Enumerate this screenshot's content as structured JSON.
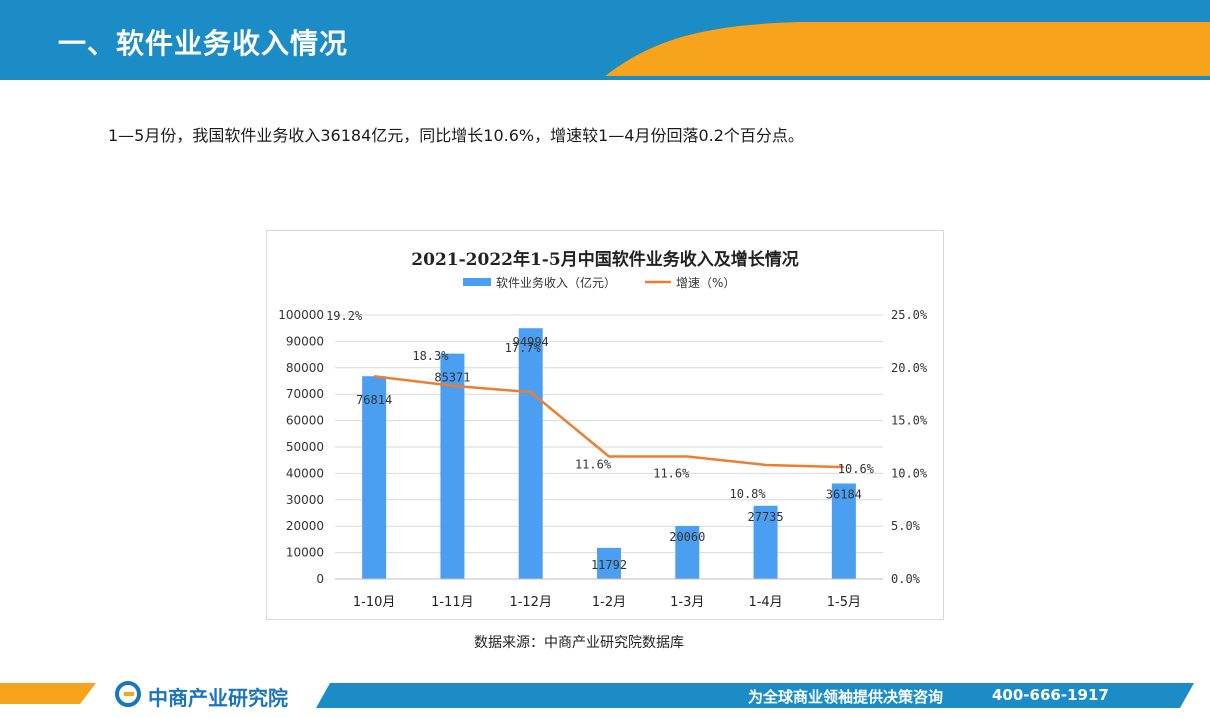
{
  "header": {
    "title": "一、软件业务收入情况"
  },
  "intro": {
    "text": "1—5月份，我国软件业务收入36184亿元，同比增长10.6%，增速较1—4月份回落0.2个百分点。"
  },
  "chart_data": {
    "type": "bar",
    "title": "2021-2022年1-5月中国软件业务收入及增长情况",
    "categories": [
      "1-10月",
      "1-11月",
      "1-12月",
      "1-2月",
      "1-3月",
      "1-4月",
      "1-5月"
    ],
    "series": [
      {
        "name": "软件业务收入（亿元）",
        "type": "bar",
        "axis": "left",
        "values": [
          76814,
          85371,
          94994,
          11792,
          20060,
          27735,
          36184
        ],
        "labels": [
          "76814",
          "85371",
          "94994",
          "11792",
          "20060",
          "27735",
          "36184"
        ]
      },
      {
        "name": "增速（%）",
        "type": "line",
        "axis": "right",
        "values": [
          19.2,
          18.3,
          17.7,
          11.6,
          11.6,
          10.8,
          10.6
        ],
        "labels": [
          "19.2%",
          "18.3%",
          "17.7%",
          "11.6%",
          "11.6%",
          "10.8%",
          "10.6%"
        ]
      }
    ],
    "ylim": [
      0,
      100000
    ],
    "y2lim": [
      0,
      25
    ],
    "yticks": [
      "0",
      "10000",
      "20000",
      "30000",
      "40000",
      "50000",
      "60000",
      "70000",
      "80000",
      "90000",
      "100000"
    ],
    "y2ticks": [
      "0.0%",
      "5.0%",
      "10.0%",
      "15.0%",
      "20.0%",
      "25.0%"
    ],
    "legend": "top",
    "grid": true,
    "colors": {
      "bar": "#4a9ff0",
      "line": "#ed7d31"
    }
  },
  "source": {
    "text": "数据来源：中商产业研究院数据库"
  },
  "footer": {
    "logo": "中商产业研究院",
    "slogan": "为全球商业领袖提供决策咨询",
    "phone": "400-666-1917"
  },
  "colors": {
    "header_blue": "#1b8cc6",
    "header_orange": "#f7a41c"
  }
}
